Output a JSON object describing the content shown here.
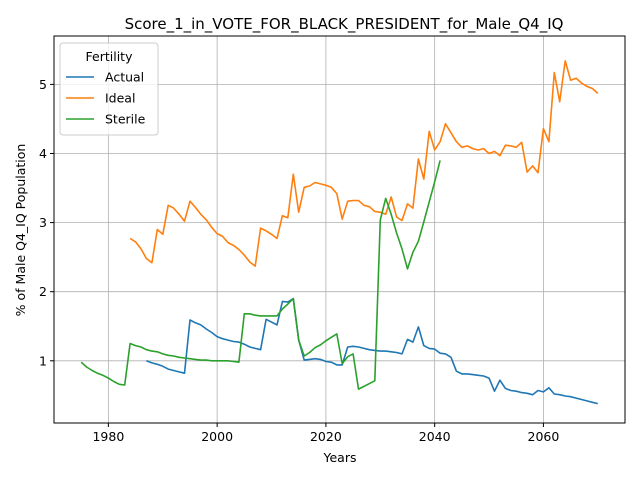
{
  "chart_data": {
    "type": "line",
    "title": "Score_1_in_VOTE_FOR_BLACK_PRESIDENT_for_Male_Q4_IQ",
    "xlabel": "Years",
    "ylabel": "% of Male Q4_IQ Population",
    "xlim": [
      1970,
      2075
    ],
    "ylim": [
      0.1,
      5.7
    ],
    "xticks": [
      1980,
      2000,
      2020,
      2040,
      2060
    ],
    "yticks": [
      1,
      2,
      3,
      4,
      5
    ],
    "grid": true,
    "legend": {
      "title": "Fertility",
      "position": "top-left"
    },
    "series": [
      {
        "name": "Actual",
        "color": "#1f77b4",
        "x": [
          1987,
          1988,
          1989,
          1990,
          1991,
          1992,
          1993,
          1994,
          1995,
          1996,
          1997,
          1998,
          1999,
          2000,
          2001,
          2002,
          2003,
          2004,
          2005,
          2006,
          2007,
          2008,
          2009,
          2010,
          2011,
          2012,
          2013,
          2014,
          2015,
          2016,
          2017,
          2018,
          2019,
          2020,
          2021,
          2022,
          2023,
          2024,
          2025,
          2026,
          2027,
          2028,
          2029,
          2030,
          2031,
          2032,
          2033,
          2034,
          2035,
          2036,
          2037,
          2038,
          2039,
          2040,
          2041,
          2042,
          2043,
          2044,
          2045,
          2046,
          2047,
          2048,
          2049,
          2050,
          2051,
          2052,
          2053,
          2054,
          2055,
          2056,
          2057,
          2058,
          2059,
          2060,
          2061,
          2062,
          2063,
          2064,
          2065,
          2066,
          2067,
          2068,
          2069,
          2070
        ],
        "y": [
          1.0,
          0.97,
          0.95,
          0.92,
          0.88,
          0.86,
          0.84,
          0.82,
          1.59,
          1.55,
          1.52,
          1.46,
          1.41,
          1.35,
          1.32,
          1.3,
          1.28,
          1.27,
          1.24,
          1.2,
          1.18,
          1.16,
          1.6,
          1.56,
          1.52,
          1.86,
          1.85,
          1.9,
          1.3,
          1.01,
          1.02,
          1.03,
          1.02,
          0.99,
          0.98,
          0.94,
          0.94,
          1.2,
          1.21,
          1.2,
          1.18,
          1.16,
          1.15,
          1.14,
          1.14,
          1.13,
          1.12,
          1.1,
          1.31,
          1.27,
          1.49,
          1.22,
          1.18,
          1.17,
          1.11,
          1.1,
          1.05,
          0.85,
          0.81,
          0.81,
          0.8,
          0.79,
          0.78,
          0.75,
          0.56,
          0.72,
          0.6,
          0.57,
          0.56,
          0.54,
          0.53,
          0.51,
          0.57,
          0.55,
          0.61,
          0.52,
          0.51,
          0.49,
          0.48,
          0.46,
          0.44,
          0.42,
          0.4,
          0.38
        ]
      },
      {
        "name": "Ideal",
        "color": "#ff7f0e",
        "x": [
          1984,
          1985,
          1986,
          1987,
          1988,
          1989,
          1990,
          1991,
          1992,
          1993,
          1994,
          1995,
          1996,
          1997,
          1998,
          1999,
          2000,
          2001,
          2002,
          2003,
          2004,
          2005,
          2006,
          2007,
          2008,
          2009,
          2010,
          2011,
          2012,
          2013,
          2014,
          2015,
          2016,
          2017,
          2018,
          2019,
          2020,
          2021,
          2022,
          2023,
          2024,
          2025,
          2026,
          2027,
          2028,
          2029,
          2030,
          2031,
          2032,
          2033,
          2034,
          2035,
          2036,
          2037,
          2038,
          2039,
          2040,
          2041,
          2042,
          2043,
          2044,
          2045,
          2046,
          2047,
          2048,
          2049,
          2050,
          2051,
          2052,
          2053,
          2054,
          2055,
          2056,
          2057,
          2058,
          2059,
          2060,
          2061,
          2062,
          2063,
          2064,
          2065,
          2066,
          2067,
          2068,
          2069,
          2070
        ],
        "y": [
          2.77,
          2.72,
          2.62,
          2.48,
          2.42,
          2.9,
          2.83,
          3.25,
          3.21,
          3.12,
          3.02,
          3.31,
          3.22,
          3.12,
          3.04,
          2.93,
          2.84,
          2.8,
          2.71,
          2.67,
          2.61,
          2.53,
          2.43,
          2.37,
          2.92,
          2.88,
          2.83,
          2.77,
          3.1,
          3.07,
          3.7,
          3.15,
          3.51,
          3.53,
          3.58,
          3.56,
          3.54,
          3.51,
          3.42,
          3.05,
          3.31,
          3.32,
          3.32,
          3.25,
          3.23,
          3.16,
          3.15,
          3.12,
          3.37,
          3.08,
          3.03,
          3.27,
          3.21,
          3.92,
          3.63,
          4.32,
          4.05,
          4.17,
          4.43,
          4.3,
          4.17,
          4.09,
          4.11,
          4.07,
          4.05,
          4.07,
          4.0,
          4.03,
          3.97,
          4.12,
          4.11,
          4.09,
          4.16,
          3.73,
          3.82,
          3.72,
          4.36,
          4.17,
          5.17,
          4.75,
          5.34,
          5.06,
          5.09,
          5.02,
          4.97,
          4.94,
          4.87
        ]
      },
      {
        "name": "Sterile",
        "color": "#2ca02c",
        "x": [
          1975,
          1976,
          1977,
          1978,
          1979,
          1980,
          1981,
          1982,
          1983,
          1984,
          1985,
          1986,
          1987,
          1988,
          1989,
          1990,
          1991,
          1992,
          1993,
          1994,
          1995,
          1996,
          1997,
          1998,
          1999,
          2000,
          2001,
          2002,
          2003,
          2004,
          2005,
          2006,
          2007,
          2008,
          2009,
          2010,
          2011,
          2012,
          2013,
          2014,
          2015,
          2016,
          2017,
          2018,
          2019,
          2020,
          2021,
          2022,
          2023,
          2024,
          2025,
          2026,
          2027,
          2028,
          2029,
          2030,
          2031,
          2032,
          2033,
          2034,
          2035,
          2036,
          2037,
          2038,
          2039,
          2040,
          2041
        ],
        "y": [
          0.98,
          0.91,
          0.86,
          0.82,
          0.79,
          0.75,
          0.7,
          0.66,
          0.65,
          1.25,
          1.22,
          1.2,
          1.16,
          1.14,
          1.13,
          1.1,
          1.08,
          1.07,
          1.05,
          1.04,
          1.03,
          1.02,
          1.01,
          1.01,
          1.0,
          1.0,
          1.0,
          1.0,
          0.99,
          0.98,
          1.68,
          1.68,
          1.66,
          1.65,
          1.65,
          1.65,
          1.65,
          1.75,
          1.82,
          1.9,
          1.3,
          1.07,
          1.12,
          1.19,
          1.23,
          1.29,
          1.34,
          1.39,
          0.96,
          1.06,
          1.1,
          0.59,
          0.63,
          0.67,
          0.71,
          3.04,
          3.35,
          3.12,
          2.85,
          2.62,
          2.33,
          2.57,
          2.73,
          3.01,
          3.3,
          3.59,
          3.9
        ]
      }
    ]
  }
}
